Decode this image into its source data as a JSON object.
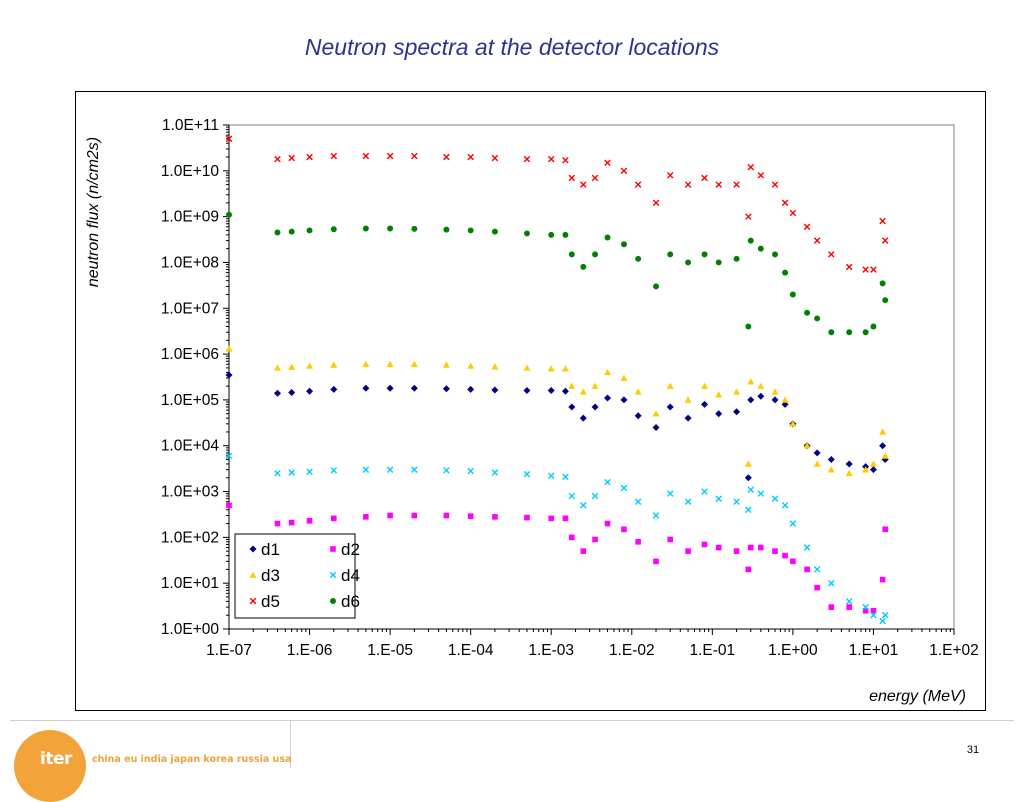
{
  "slide": {
    "title": "Neutron spectra at the detector locations",
    "page_number": "31",
    "logo_text": "iter",
    "logo_tagline": "china eu india japan korea russia usa"
  },
  "colors": {
    "d1": "#000080",
    "d2": "#ff00ff",
    "d3": "#ffcc00",
    "d4": "#00ccff",
    "d5": "#ff0000",
    "d6": "#008000",
    "title": "#2e3192",
    "logo": "#f2a33a"
  },
  "chart_data": {
    "type": "scatter",
    "title": "",
    "xlabel": "energy (MeV)",
    "ylabel": "neutron flux (n/cm2s)",
    "x_scale": "log",
    "y_scale": "log",
    "xlim": [
      1e-07,
      100
    ],
    "ylim": [
      1,
      100000000000.0
    ],
    "x_ticks": [
      "1.E-07",
      "1.E-06",
      "1.E-05",
      "1.E-04",
      "1.E-03",
      "1.E-02",
      "1.E-01",
      "1.E+00",
      "1.E+01",
      "1.E+02"
    ],
    "y_ticks": [
      "1.0E+00",
      "1.0E+01",
      "1.0E+02",
      "1.0E+03",
      "1.0E+04",
      "1.0E+05",
      "1.0E+06",
      "1.0E+07",
      "1.0E+08",
      "1.0E+09",
      "1.0E+10",
      "1.0E+11"
    ],
    "legend_position": "bottom-left",
    "grid": false,
    "series": [
      {
        "name": "d1",
        "marker": "diamond",
        "color": "#000080",
        "x": [
          1e-07,
          4e-07,
          6e-07,
          1e-06,
          2e-06,
          5e-06,
          1e-05,
          2e-05,
          5e-05,
          0.0001,
          0.0002,
          0.0005,
          0.001,
          0.0015,
          0.0018,
          0.0025,
          0.0035,
          0.005,
          0.008,
          0.012,
          0.02,
          0.03,
          0.05,
          0.08,
          0.12,
          0.2,
          0.28,
          0.3,
          0.4,
          0.6,
          0.8,
          1.0,
          1.5,
          2.0,
          3.0,
          5.0,
          8.0,
          10.0,
          13.0,
          14.0
        ],
        "y": [
          350000.0,
          140000.0,
          145000.0,
          155000.0,
          170000.0,
          180000.0,
          180000.0,
          180000.0,
          175000.0,
          170000.0,
          165000.0,
          160000.0,
          160000.0,
          155000.0,
          70000.0,
          40000.0,
          70000.0,
          110000.0,
          100000.0,
          45000.0,
          25000.0,
          70000.0,
          40000.0,
          80000.0,
          50000.0,
          55000.0,
          2000.0,
          100000.0,
          120000.0,
          100000.0,
          80000.0,
          30000.0,
          10000.0,
          7000.0,
          5000.0,
          4000.0,
          3500.0,
          3000.0,
          10000.0,
          5000.0
        ]
      },
      {
        "name": "d2",
        "marker": "square",
        "color": "#ff00ff",
        "x": [
          1e-07,
          4e-07,
          6e-07,
          1e-06,
          2e-06,
          5e-06,
          1e-05,
          2e-05,
          5e-05,
          0.0001,
          0.0002,
          0.0005,
          0.001,
          0.0015,
          0.0018,
          0.0025,
          0.0035,
          0.005,
          0.008,
          0.012,
          0.02,
          0.03,
          0.05,
          0.08,
          0.12,
          0.2,
          0.28,
          0.3,
          0.4,
          0.6,
          0.8,
          1.0,
          1.5,
          2.0,
          3.0,
          5.0,
          8.0,
          10.0,
          13.0,
          14.0
        ],
        "y": [
          500,
          200,
          210,
          230,
          260,
          280,
          300,
          300,
          300,
          290,
          280,
          270,
          260,
          260,
          100,
          50,
          90,
          200,
          150,
          80,
          30,
          90,
          50,
          70,
          60,
          50,
          20,
          60,
          60,
          50,
          40,
          30,
          20,
          8,
          3,
          3,
          2.5,
          2.5,
          12,
          150
        ]
      },
      {
        "name": "d3",
        "marker": "triangle",
        "color": "#ffcc00",
        "x": [
          1e-07,
          4e-07,
          6e-07,
          1e-06,
          2e-06,
          5e-06,
          1e-05,
          2e-05,
          5e-05,
          0.0001,
          0.0002,
          0.0005,
          0.001,
          0.0015,
          0.0018,
          0.0025,
          0.0035,
          0.005,
          0.008,
          0.012,
          0.02,
          0.03,
          0.05,
          0.08,
          0.12,
          0.2,
          0.28,
          0.3,
          0.4,
          0.6,
          0.8,
          1.0,
          1.5,
          2.0,
          3.0,
          5.0,
          8.0,
          10.0,
          13.0,
          14.0
        ],
        "y": [
          1300000.0,
          500000.0,
          520000.0,
          550000.0,
          580000.0,
          600000.0,
          600000.0,
          600000.0,
          580000.0,
          550000.0,
          530000.0,
          500000.0,
          480000.0,
          480000.0,
          200000.0,
          150000.0,
          200000.0,
          400000.0,
          300000.0,
          150000.0,
          50000.0,
          200000.0,
          100000.0,
          200000.0,
          130000.0,
          150000.0,
          4000.0,
          250000.0,
          200000.0,
          150000.0,
          100000.0,
          30000.0,
          10000.0,
          4000.0,
          3000.0,
          2500.0,
          3000.0,
          4000.0,
          20000.0,
          6000.0
        ]
      },
      {
        "name": "d4",
        "marker": "x",
        "color": "#00ccff",
        "x": [
          1e-07,
          4e-07,
          6e-07,
          1e-06,
          2e-06,
          5e-06,
          1e-05,
          2e-05,
          5e-05,
          0.0001,
          0.0002,
          0.0005,
          0.001,
          0.0015,
          0.0018,
          0.0025,
          0.0035,
          0.005,
          0.008,
          0.012,
          0.02,
          0.03,
          0.05,
          0.08,
          0.12,
          0.2,
          0.28,
          0.3,
          0.4,
          0.6,
          0.8,
          1.0,
          1.5,
          2.0,
          3.0,
          5.0,
          8.0,
          10.0,
          13.0,
          14.0
        ],
        "y": [
          6000,
          2500,
          2600,
          2700,
          2900,
          3000,
          3000,
          3000,
          2900,
          2800,
          2600,
          2400,
          2200,
          2100,
          800,
          500,
          800,
          1600,
          1200,
          600,
          300,
          900,
          600,
          1000,
          700,
          600,
          400,
          1100,
          900,
          700,
          500,
          200,
          60,
          20,
          10,
          4,
          3,
          2,
          1.5,
          2
        ]
      },
      {
        "name": "d5",
        "marker": "x",
        "color": "#ff0000",
        "x": [
          1e-07,
          4e-07,
          6e-07,
          1e-06,
          2e-06,
          5e-06,
          1e-05,
          2e-05,
          5e-05,
          0.0001,
          0.0002,
          0.0005,
          0.001,
          0.0015,
          0.0018,
          0.0025,
          0.0035,
          0.005,
          0.008,
          0.012,
          0.02,
          0.03,
          0.05,
          0.08,
          0.12,
          0.2,
          0.28,
          0.3,
          0.4,
          0.6,
          0.8,
          1.0,
          1.5,
          2.0,
          3.0,
          5.0,
          8.0,
          10.0,
          13.0,
          14.0
        ],
        "y": [
          50000000000.0,
          18000000000.0,
          19000000000.0,
          20000000000.0,
          21000000000.0,
          21000000000.0,
          21000000000.0,
          21000000000.0,
          20000000000.0,
          20000000000.0,
          19000000000.0,
          18000000000.0,
          18000000000.0,
          17000000000.0,
          7000000000.0,
          5000000000.0,
          7000000000.0,
          15000000000.0,
          10000000000.0,
          5000000000.0,
          2000000000.0,
          8000000000.0,
          5000000000.0,
          7000000000.0,
          5000000000.0,
          5000000000.0,
          1000000000.0,
          12000000000.0,
          8000000000.0,
          5000000000.0,
          2000000000.0,
          1200000000.0,
          600000000.0,
          300000000.0,
          150000000.0,
          80000000.0,
          70000000.0,
          70000000.0,
          800000000.0,
          300000000.0
        ]
      },
      {
        "name": "d6",
        "marker": "circle",
        "color": "#008000",
        "x": [
          1e-07,
          4e-07,
          6e-07,
          1e-06,
          2e-06,
          5e-06,
          1e-05,
          2e-05,
          5e-05,
          0.0001,
          0.0002,
          0.0005,
          0.001,
          0.0015,
          0.0018,
          0.0025,
          0.0035,
          0.005,
          0.008,
          0.012,
          0.02,
          0.03,
          0.05,
          0.08,
          0.12,
          0.2,
          0.28,
          0.3,
          0.4,
          0.6,
          0.8,
          1.0,
          1.5,
          2.0,
          3.0,
          5.0,
          8.0,
          10.0,
          13.0,
          14.0
        ],
        "y": [
          1100000000.0,
          450000000.0,
          470000000.0,
          500000000.0,
          530000000.0,
          550000000.0,
          550000000.0,
          540000000.0,
          520000000.0,
          500000000.0,
          470000000.0,
          430000000.0,
          400000000.0,
          400000000.0,
          150000000.0,
          80000000.0,
          150000000.0,
          350000000.0,
          250000000.0,
          120000000.0,
          30000000.0,
          150000000.0,
          100000000.0,
          150000000.0,
          100000000.0,
          120000000.0,
          4000000.0,
          300000000.0,
          200000000.0,
          150000000.0,
          60000000.0,
          20000000.0,
          8000000.0,
          6000000.0,
          3000000.0,
          3000000.0,
          3000000.0,
          4000000.0,
          35000000.0,
          15000000.0
        ]
      }
    ]
  }
}
